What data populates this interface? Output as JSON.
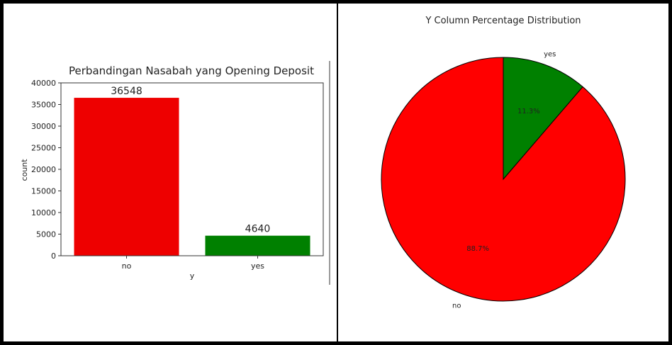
{
  "chart_data": [
    {
      "type": "bar",
      "title": "Perbandingan Nasabah yang Opening Deposit",
      "xlabel": "y",
      "ylabel": "count",
      "categories": [
        "no",
        "yes"
      ],
      "values": [
        36548,
        4640
      ],
      "data_labels": [
        "36548",
        "4640"
      ],
      "colors": [
        "#ee0000",
        "#008000"
      ],
      "ylim": [
        0,
        40000
      ],
      "yticks": [
        0,
        5000,
        10000,
        15000,
        20000,
        25000,
        30000,
        35000,
        40000
      ],
      "grid": false
    },
    {
      "type": "pie",
      "title": "Y Column Percentage Distribution",
      "labels": [
        "no",
        "yes"
      ],
      "values": [
        88.7,
        11.3
      ],
      "autopct": [
        "88.7%",
        "11.3%"
      ],
      "colors": [
        "#ff0000",
        "#008000"
      ],
      "edgecolor": "#000000"
    }
  ]
}
